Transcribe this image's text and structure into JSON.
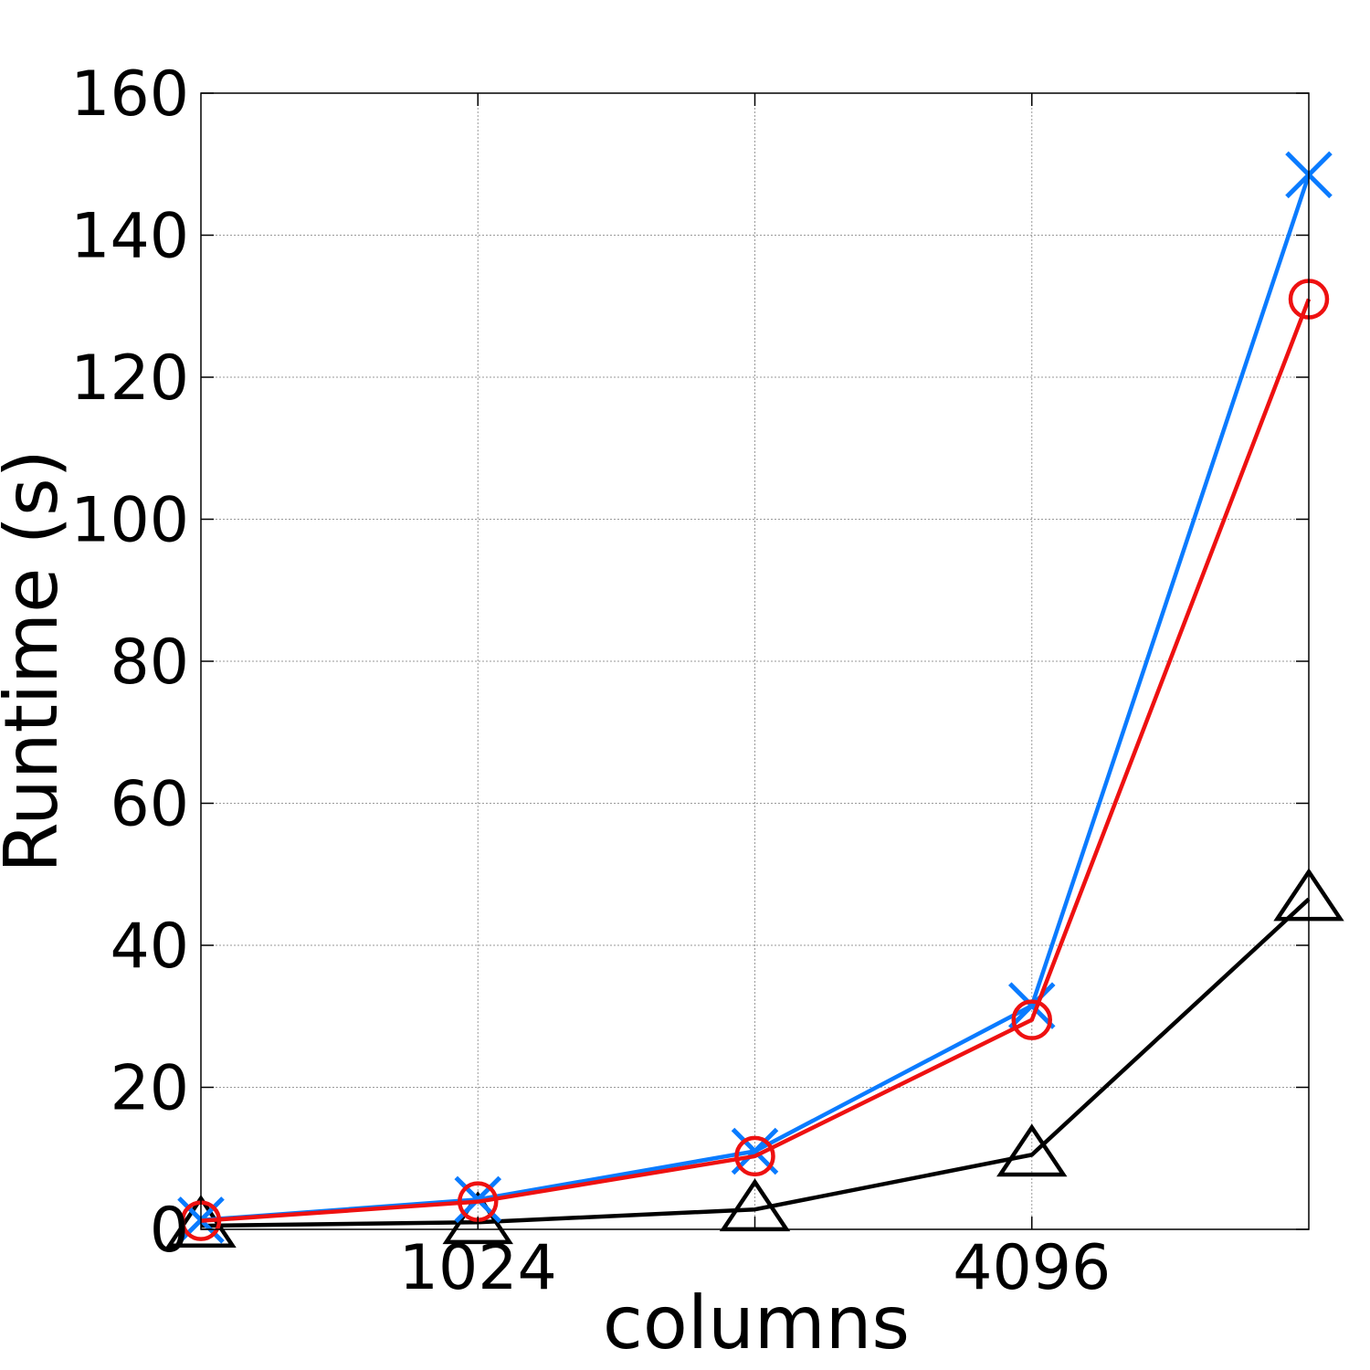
{
  "chart_data": {
    "type": "line",
    "title": "",
    "xlabel": "columns",
    "ylabel": "Runtime (s)",
    "x_scale": "log2",
    "x": [
      512,
      1024,
      2048,
      4096,
      8192
    ],
    "xlim": [
      512,
      8192
    ],
    "xticks": [
      1024,
      4096
    ],
    "xtick_labels": [
      "1024",
      "4096"
    ],
    "ylim": [
      0,
      160
    ],
    "yticks": [
      0,
      20,
      40,
      60,
      80,
      100,
      120,
      140,
      160
    ],
    "ytick_labels": [
      "0",
      "20",
      "40",
      "60",
      "80",
      "100",
      "120",
      "140",
      "160"
    ],
    "grid": true,
    "series": [
      {
        "marker": "triangle",
        "color": "#000000",
        "values": [
          0.5,
          1.0,
          2.8,
          10.5,
          46.5
        ]
      },
      {
        "marker": "x",
        "color": "#0a7bff",
        "values": [
          1.3,
          4.2,
          11.0,
          31.5,
          148.5
        ]
      },
      {
        "marker": "circle",
        "color": "#ee1111",
        "values": [
          1.2,
          3.9,
          10.3,
          29.5,
          131.0
        ]
      }
    ]
  }
}
